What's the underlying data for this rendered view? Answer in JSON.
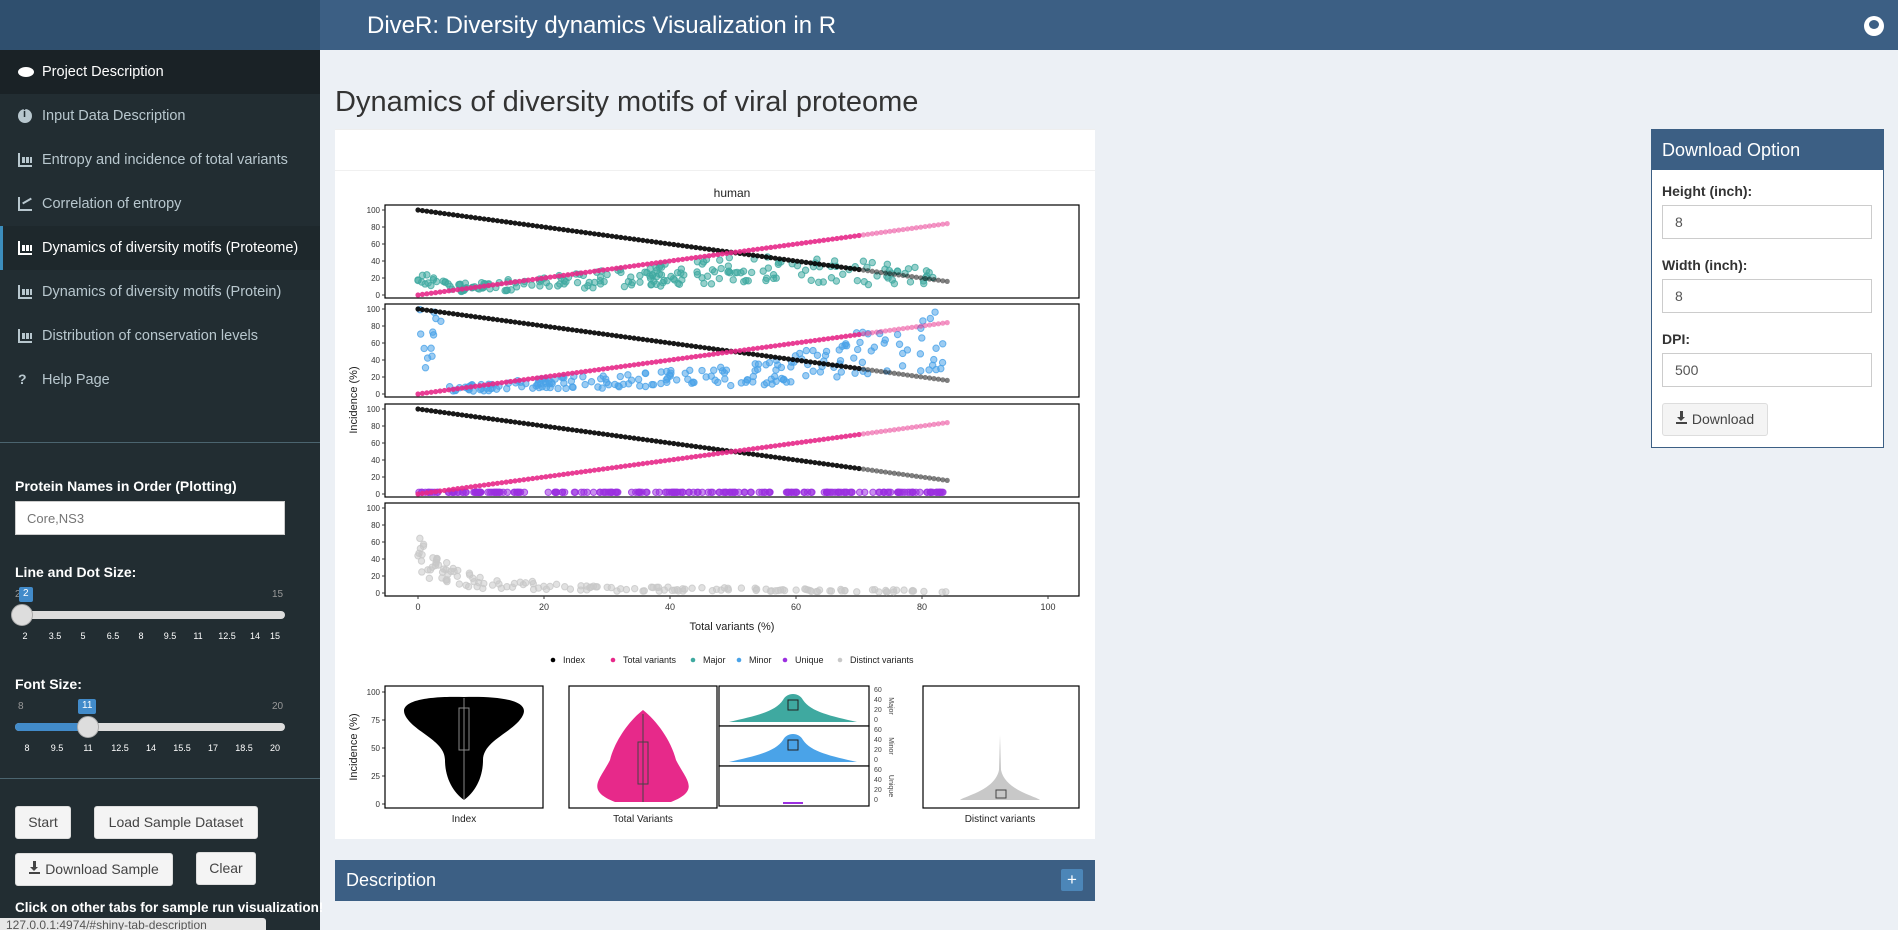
{
  "header": {
    "title": "DiveR: Diversity dynamics Visualization in R",
    "github_icon": "github-icon"
  },
  "sidebar": {
    "items": [
      {
        "label": "Project Description",
        "icon": "eye-icon"
      },
      {
        "label": "Input Data Description",
        "icon": "info-icon"
      },
      {
        "label": "Entropy and incidence of total variants",
        "icon": "bar-chart-icon"
      },
      {
        "label": "Correlation of entropy",
        "icon": "line-chart-icon"
      },
      {
        "label": "Dynamics of diversity motifs (Proteome)",
        "icon": "bar-chart-icon"
      },
      {
        "label": "Dynamics of diversity motifs (Protein)",
        "icon": "bar-chart-icon"
      },
      {
        "label": "Distribution of conservation levels",
        "icon": "bar-chart-icon"
      },
      {
        "label": "Help Page",
        "icon": "question-icon"
      }
    ],
    "protein_label": "Protein Names in Order (Plotting)",
    "protein_placeholder": "Core,NS3",
    "line_dot_label": "Line and Dot Size:",
    "line_dot": {
      "min": "2",
      "max": "15",
      "value": "2",
      "ticks": [
        "2",
        "3.5",
        "5",
        "6.5",
        "8",
        "9.5",
        "11",
        "12.5",
        "14",
        "15"
      ]
    },
    "font_label": "Font Size:",
    "font": {
      "min": "8",
      "max": "20",
      "value": "11",
      "ticks": [
        "8",
        "9.5",
        "11",
        "12.5",
        "14",
        "15.5",
        "17",
        "18.5",
        "20"
      ]
    },
    "buttons": {
      "start": "Start",
      "load_sample": "Load Sample Dataset",
      "download_sample": "Download Sample",
      "clear": "Clear"
    },
    "note": "Click on other tabs for sample run visualization!",
    "status_url": "127.0.0.1:4974/#shiny-tab-description"
  },
  "main": {
    "title": "Dynamics of diversity motifs of viral proteome",
    "description_label": "Description",
    "description_toggle": "+"
  },
  "download_panel": {
    "title": "Download Option",
    "height_label": "Height (inch):",
    "height_value": "8",
    "width_label": "Width (inch):",
    "width_value": "8",
    "dpi_label": "DPI:",
    "dpi_value": "500",
    "button": "Download"
  },
  "chart_data": [
    {
      "type": "scatter",
      "title": "human",
      "xlabel": "Total variants (%)",
      "ylabel": "Incidence (%)",
      "xlim": [
        0,
        100
      ],
      "ylim": [
        0,
        100
      ],
      "x_ticks": [
        "0",
        "20",
        "40",
        "60",
        "80",
        "100"
      ],
      "y_ticks": [
        "0",
        "20",
        "40",
        "60",
        "80",
        "100"
      ],
      "legend": [
        "Index",
        "Total variants",
        "Major",
        "Minor",
        "Unique",
        "Distinct variants"
      ],
      "legend_position": "bottom",
      "colors": {
        "Index": "#000000",
        "Total variants": "#e7298a",
        "Major": "#3fa9a0",
        "Minor": "#4aa3e8",
        "Unique": "#9b30e0",
        "Distinct variants": "#c8c8c8"
      },
      "panels": [
        "Major",
        "Minor",
        "Unique",
        "Distinct variants"
      ],
      "index_line": {
        "x": [
          0,
          84
        ],
        "y": [
          100,
          16
        ]
      },
      "total_line": {
        "x": [
          0,
          84
        ],
        "y": [
          0,
          84
        ]
      },
      "major_band": [
        [
          5,
          8
        ],
        [
          20,
          14
        ],
        [
          40,
          24
        ],
        [
          55,
          32
        ],
        [
          65,
          28
        ],
        [
          75,
          24
        ],
        [
          84,
          18
        ]
      ],
      "minor_band": [
        [
          5,
          6
        ],
        [
          20,
          12
        ],
        [
          40,
          18
        ],
        [
          55,
          24
        ],
        [
          65,
          40
        ],
        [
          75,
          55
        ],
        [
          84,
          65
        ]
      ],
      "unique_band": [
        [
          0,
          2
        ],
        [
          84,
          2
        ]
      ],
      "distinct_band": [
        [
          0,
          55
        ],
        [
          2,
          30
        ],
        [
          10,
          12
        ],
        [
          30,
          5
        ],
        [
          84,
          2
        ]
      ]
    },
    {
      "type": "violin",
      "ylabel": "Incidence (%)",
      "ylim": [
        0,
        100
      ],
      "y_ticks": [
        "0",
        "25",
        "50",
        "75",
        "100"
      ],
      "categories": [
        "Index",
        "Total Variants",
        "Distinct variants"
      ],
      "small_panels": [
        {
          "name": "Major",
          "ticks": [
            "0",
            "20",
            "40",
            "60"
          ]
        },
        {
          "name": "Minor",
          "ticks": [
            "0",
            "20",
            "40",
            "60"
          ]
        },
        {
          "name": "Unique",
          "ticks": [
            "0",
            "20",
            "40",
            "60"
          ]
        }
      ]
    }
  ]
}
